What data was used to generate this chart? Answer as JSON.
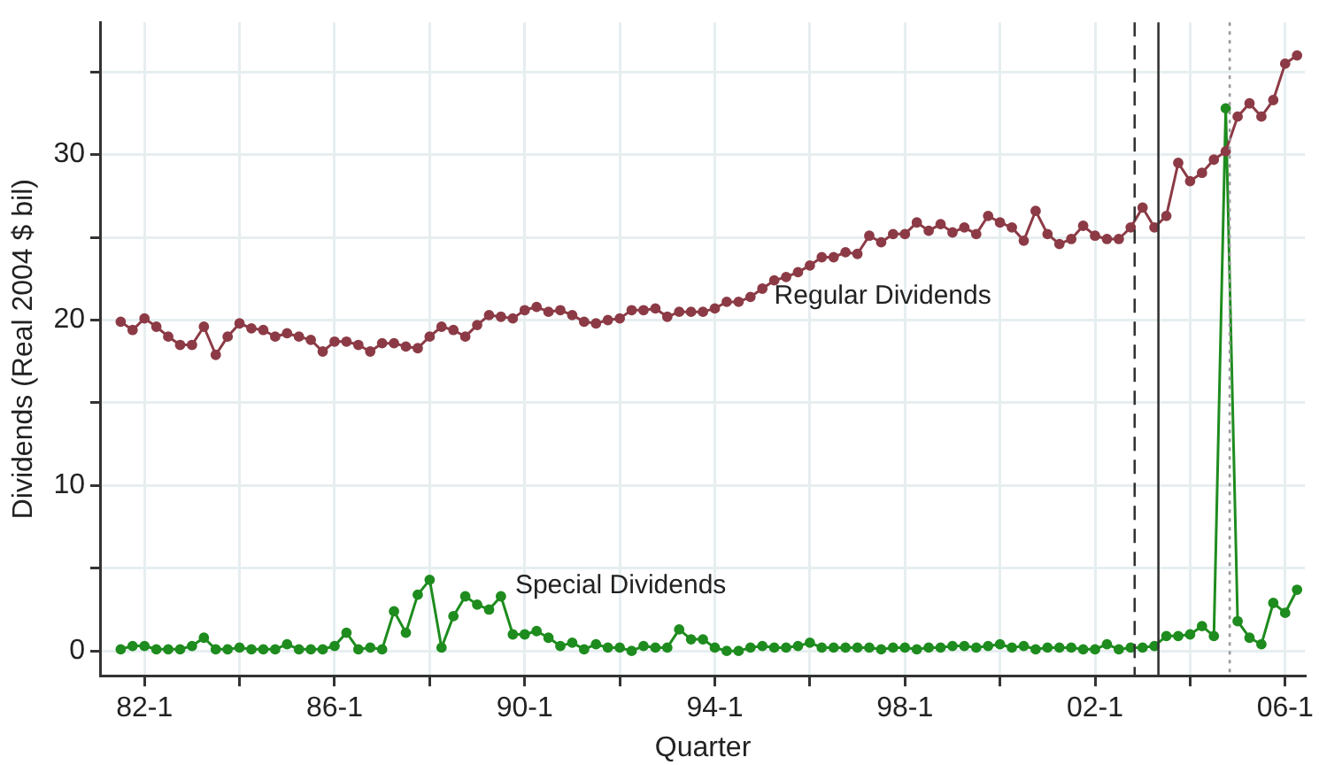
{
  "chart_data": {
    "type": "line",
    "xlabel": "Quarter",
    "ylabel": "Dividends (Real 2004 $ bil)",
    "x": [
      "1981-07",
      "1981-10",
      "1982-01",
      "1982-04",
      "1982-07",
      "1982-10",
      "1983-01",
      "1983-04",
      "1983-07",
      "1983-10",
      "1984-01",
      "1984-04",
      "1984-07",
      "1984-10",
      "1985-01",
      "1985-04",
      "1985-07",
      "1985-10",
      "1986-01",
      "1986-04",
      "1986-07",
      "1986-10",
      "1987-01",
      "1987-04",
      "1987-07",
      "1987-10",
      "1988-01",
      "1988-04",
      "1988-07",
      "1988-10",
      "1989-01",
      "1989-04",
      "1989-07",
      "1989-10",
      "1990-01",
      "1990-04",
      "1990-07",
      "1990-10",
      "1991-01",
      "1991-04",
      "1991-07",
      "1991-10",
      "1992-01",
      "1992-04",
      "1992-07",
      "1992-10",
      "1993-01",
      "1993-04",
      "1993-07",
      "1993-10",
      "1994-01",
      "1994-04",
      "1994-07",
      "1994-10",
      "1995-01",
      "1995-04",
      "1995-07",
      "1995-10",
      "1996-01",
      "1996-04",
      "1996-07",
      "1996-10",
      "1997-01",
      "1997-04",
      "1997-07",
      "1997-10",
      "1998-01",
      "1998-04",
      "1998-07",
      "1998-10",
      "1999-01",
      "1999-04",
      "1999-07",
      "1999-10",
      "2000-01",
      "2000-04",
      "2000-07",
      "2000-10",
      "2001-01",
      "2001-04",
      "2001-07",
      "2001-10",
      "2002-01",
      "2002-04",
      "2002-07",
      "2002-10",
      "2003-01",
      "2003-04",
      "2003-07",
      "2003-10",
      "2004-01",
      "2004-04",
      "2004-07",
      "2004-10",
      "2005-01",
      "2005-04",
      "2005-07",
      "2005-10",
      "2006-01",
      "2006-04"
    ],
    "series": [
      {
        "name": "Regular Dividends",
        "color": "#8c3b46",
        "values": [
          19.9,
          19.4,
          20.1,
          19.6,
          19.0,
          18.5,
          18.5,
          19.6,
          17.9,
          19.0,
          19.8,
          19.5,
          19.4,
          19.0,
          19.2,
          19.0,
          18.8,
          18.1,
          18.7,
          18.7,
          18.5,
          18.1,
          18.6,
          18.6,
          18.4,
          18.3,
          19.0,
          19.6,
          19.4,
          19.0,
          19.7,
          20.3,
          20.2,
          20.1,
          20.6,
          20.8,
          20.5,
          20.6,
          20.3,
          19.9,
          19.8,
          20.0,
          20.1,
          20.6,
          20.6,
          20.7,
          20.2,
          20.5,
          20.5,
          20.5,
          20.7,
          21.1,
          21.1,
          21.4,
          21.9,
          22.4,
          22.6,
          22.9,
          23.3,
          23.8,
          23.8,
          24.1,
          24.0,
          25.1,
          24.7,
          25.2,
          25.2,
          25.9,
          25.4,
          25.8,
          25.3,
          25.6,
          25.2,
          26.3,
          25.9,
          25.6,
          24.8,
          26.6,
          25.2,
          24.6,
          24.9,
          25.7,
          25.1,
          24.9,
          24.9,
          25.6,
          26.8,
          25.6,
          26.3,
          29.5,
          28.4,
          28.9,
          29.7,
          30.2,
          32.3,
          33.1,
          32.3,
          33.3,
          35.5,
          36.0
        ]
      },
      {
        "name": "Special Dividends",
        "color": "#1e8c1e",
        "values": [
          0.1,
          0.3,
          0.3,
          0.1,
          0.1,
          0.1,
          0.3,
          0.8,
          0.1,
          0.1,
          0.2,
          0.1,
          0.1,
          0.1,
          0.4,
          0.1,
          0.1,
          0.1,
          0.3,
          1.1,
          0.1,
          0.2,
          0.1,
          2.4,
          1.1,
          3.4,
          4.3,
          0.2,
          2.1,
          3.3,
          2.8,
          2.5,
          3.3,
          1.0,
          1.0,
          1.2,
          0.8,
          0.3,
          0.5,
          0.1,
          0.4,
          0.2,
          0.2,
          0,
          0.3,
          0.2,
          0.2,
          1.3,
          0.7,
          0.7,
          0.2,
          0,
          0,
          0.2,
          0.3,
          0.2,
          0.2,
          0.3,
          0.5,
          0.2,
          0.2,
          0.2,
          0.2,
          0.2,
          0.1,
          0.2,
          0.2,
          0.1,
          0.2,
          0.2,
          0.3,
          0.3,
          0.2,
          0.3,
          0.4,
          0.2,
          0.3,
          0.1,
          0.2,
          0.2,
          0.2,
          0.1,
          0.1,
          0.4,
          0.1,
          0.2,
          0.2,
          0.3,
          0.9,
          0.9,
          1.0,
          1.5,
          0.9,
          32.8,
          1.8,
          0.8,
          0.4,
          2.9,
          2.3,
          3.7
        ]
      }
    ],
    "xlim": [
      "1981-02",
      "2006-06"
    ],
    "xticks": [
      {
        "value": "1982-01",
        "label": "82-1"
      },
      {
        "value": "1984-01",
        "label": null
      },
      {
        "value": "1986-01",
        "label": "86-1"
      },
      {
        "value": "1988-01",
        "label": null
      },
      {
        "value": "1990-01",
        "label": "90-1"
      },
      {
        "value": "1992-01",
        "label": null
      },
      {
        "value": "1994-01",
        "label": "94-1"
      },
      {
        "value": "1996-01",
        "label": null
      },
      {
        "value": "1998-01",
        "label": "98-1"
      },
      {
        "value": "2000-01",
        "label": null
      },
      {
        "value": "2002-01",
        "label": "02-1"
      },
      {
        "value": "2004-01",
        "label": null
      },
      {
        "value": "2006-01",
        "label": "06-1"
      }
    ],
    "ylim": [
      -1.5,
      38
    ],
    "yticks": [
      0,
      {
        "value": 5,
        "label": null
      },
      10,
      {
        "value": 15,
        "label": null
      },
      20,
      {
        "value": 25,
        "label": null
      },
      30,
      {
        "value": 35,
        "label": null
      }
    ],
    "grid": true,
    "marker": "circle",
    "line_style": "solid",
    "legend": false,
    "ref_lines": [
      {
        "axis": "x",
        "value": "2002-11",
        "color": "#333333",
        "line_style": "dashed"
      },
      {
        "axis": "x",
        "value": "2003-05",
        "color": "#333333",
        "line_style": "solid"
      },
      {
        "axis": "x",
        "value": "2004-11",
        "color": "#999999",
        "line_style": "dotted"
      }
    ]
  }
}
